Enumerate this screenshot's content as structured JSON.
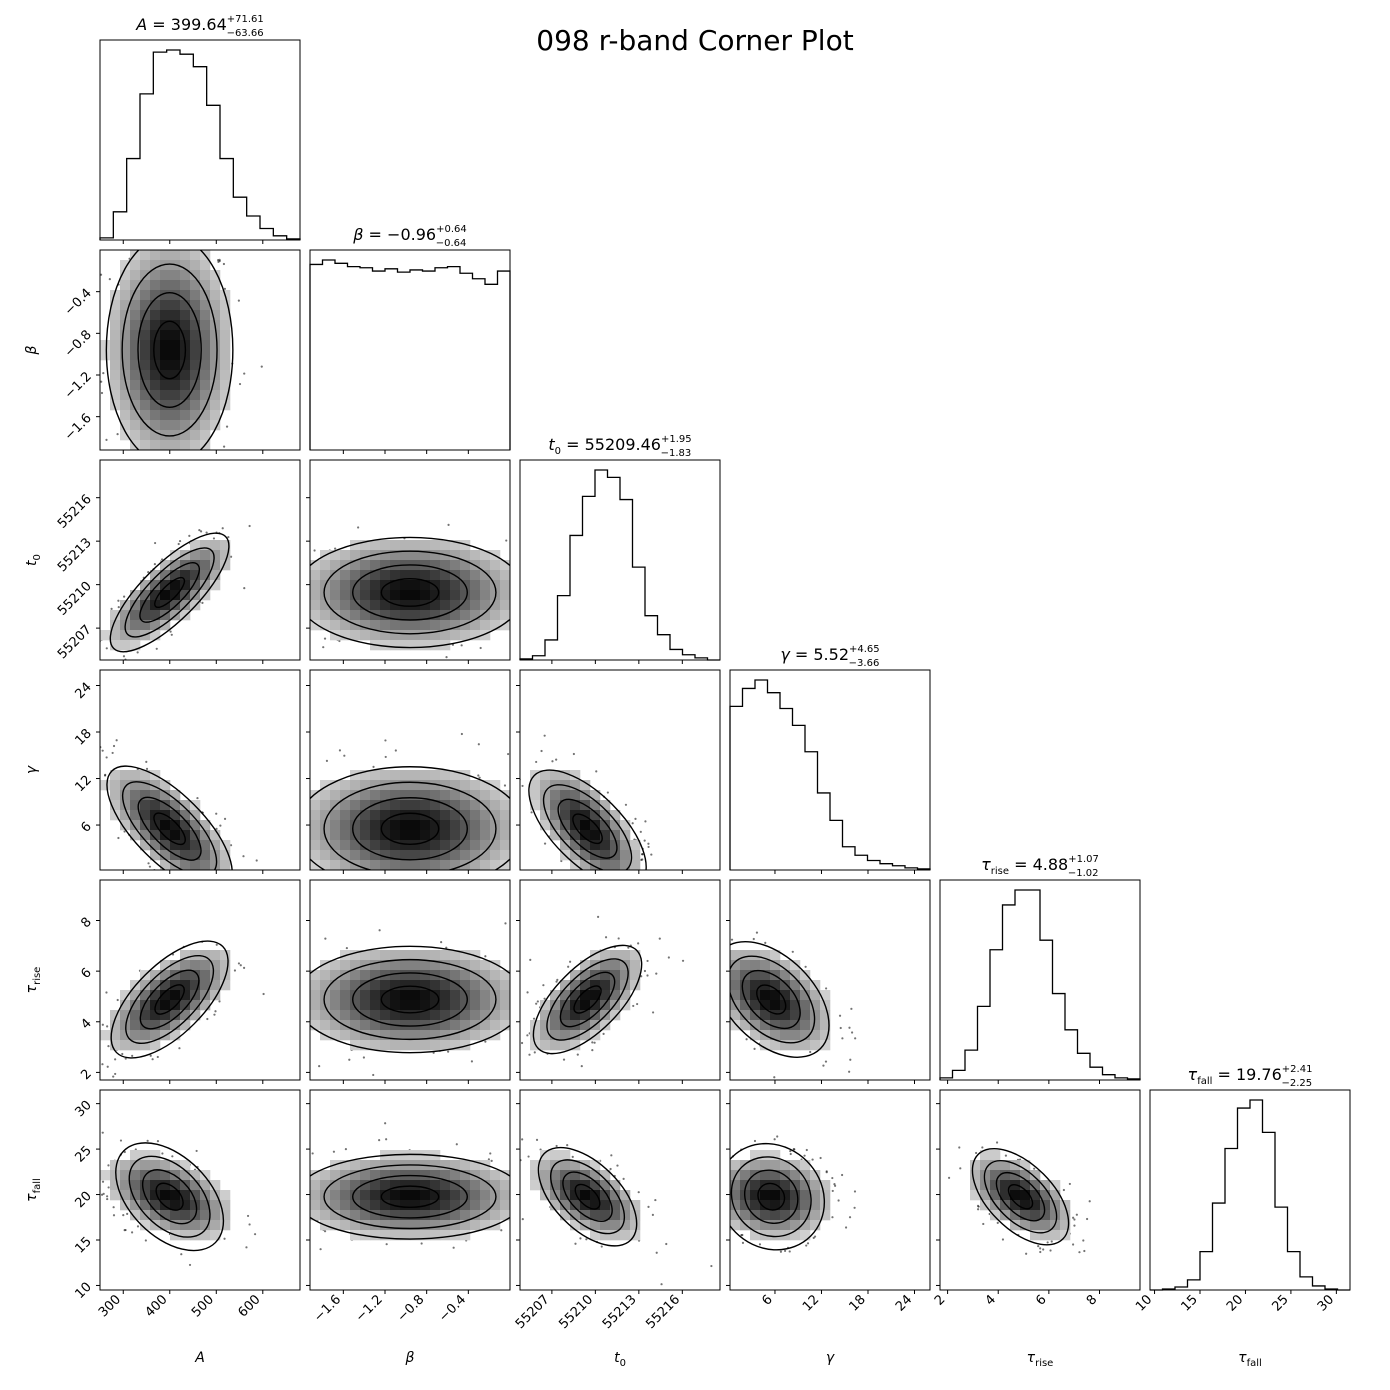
{
  "chart_data": {
    "type": "corner",
    "title": "098 r-band Corner Plot",
    "params": [
      {
        "key": "A",
        "label": "A",
        "sub": "",
        "median": "399.64",
        "plus": "+71.61",
        "minus": "−63.66",
        "range": [
          250,
          680
        ],
        "ticks": [
          300,
          400,
          500,
          600
        ],
        "tick_labels": [
          "300",
          "400",
          "500",
          "600"
        ],
        "hist": [
          2,
          27,
          78,
          140,
          180,
          182,
          178,
          166,
          129,
          78,
          41,
          23,
          11,
          4,
          1
        ],
        "mean": 399.64,
        "sd": 68
      },
      {
        "key": "beta",
        "label": "β",
        "sub": "",
        "median": "−0.96",
        "plus": "+0.64",
        "minus": "−0.64",
        "range": [
          -1.92,
          0
        ],
        "ticks": [
          -1.6,
          -1.2,
          -0.8,
          -0.4
        ],
        "tick_labels": [
          "−1.6",
          "−1.2",
          "−0.8",
          "−0.4"
        ],
        "hist": [
          168,
          172,
          169,
          166,
          165,
          162,
          164,
          161,
          163,
          162,
          165,
          166,
          160,
          155,
          150,
          162
        ],
        "mean": -0.96,
        "sd": 0.55
      },
      {
        "key": "t0",
        "label": "t",
        "sub": "0",
        "median": "55209.46",
        "plus": "+1.95",
        "minus": "−1.83",
        "range": [
          55204.8,
          55218.6
        ],
        "ticks": [
          55207,
          55210,
          55213,
          55216
        ],
        "tick_labels": [
          "55207",
          "55210",
          "55213",
          "55216"
        ],
        "hist": [
          1,
          4,
          19,
          61,
          118,
          155,
          180,
          173,
          152,
          88,
          42,
          24,
          10,
          5,
          2,
          0
        ],
        "mean": 55209.46,
        "sd": 1.9
      },
      {
        "key": "gamma",
        "label": "γ",
        "sub": "",
        "median": "5.52",
        "plus": "+4.65",
        "minus": "−3.66",
        "range": [
          0.2,
          26
        ],
        "ticks": [
          6,
          12,
          18,
          24
        ],
        "tick_labels": [
          "6",
          "12",
          "18",
          "24"
        ],
        "hist": [
          155,
          172,
          180,
          168,
          153,
          137,
          112,
          73,
          47,
          22,
          14,
          9,
          6,
          4,
          2,
          1
        ],
        "mean": 5.52,
        "sd": 4.0
      },
      {
        "key": "tau_rise",
        "label": "τ",
        "sub": "rise",
        "median": "4.88",
        "plus": "+1.07",
        "minus": "−1.02",
        "range": [
          1.7,
          9.6
        ],
        "ticks": [
          2,
          4,
          6,
          8
        ],
        "tick_labels": [
          "2",
          "4",
          "6",
          "8"
        ],
        "hist": [
          2,
          9,
          28,
          69,
          122,
          164,
          178,
          178,
          131,
          81,
          47,
          25,
          12,
          5,
          2,
          1
        ],
        "mean": 4.88,
        "sd": 1.05
      },
      {
        "key": "tau_fall",
        "label": "τ",
        "sub": "fall",
        "median": "19.76",
        "plus": "+2.41",
        "minus": "−2.25",
        "range": [
          9.5,
          31.5
        ],
        "ticks": [
          10,
          15,
          20,
          25,
          30
        ],
        "tick_labels": [
          "10",
          "15",
          "20",
          "25",
          "30"
        ],
        "hist": [
          0,
          1,
          3,
          10,
          38,
          86,
          140,
          180,
          188,
          156,
          82,
          38,
          13,
          4,
          1,
          0
        ],
        "mean": 19.76,
        "sd": 2.33
      }
    ],
    "correlations": [
      [
        1,
        0,
        0.78,
        -0.7,
        0.65,
        -0.45
      ],
      [
        0,
        1,
        0,
        0,
        0,
        0
      ],
      [
        0.78,
        0,
        1,
        -0.65,
        0.65,
        -0.55
      ],
      [
        -0.7,
        0,
        -0.65,
        1,
        -0.45,
        -0.1
      ],
      [
        0.65,
        0,
        0.65,
        -0.45,
        1,
        -0.55
      ],
      [
        -0.45,
        0,
        -0.55,
        -0.1,
        -0.55,
        1
      ]
    ],
    "contour_levels_sigma": [
      0.5,
      1.0,
      1.5,
      2.0
    ],
    "colormap": {
      "high": "#000000",
      "low": "#ffffff"
    },
    "grid": false,
    "legend": "none"
  }
}
